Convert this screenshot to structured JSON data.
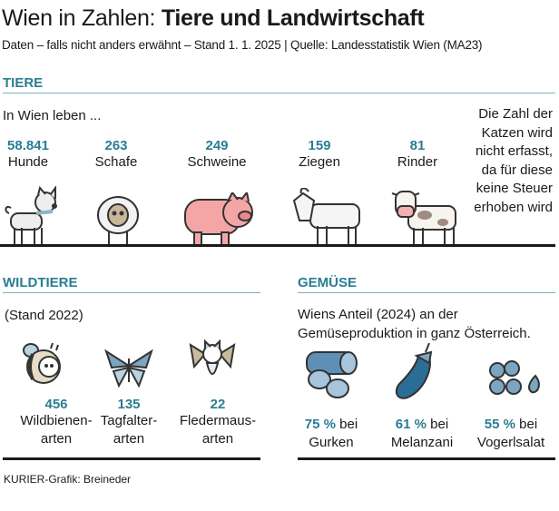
{
  "title": {
    "prefix": "Wien in Zahlen:",
    "bold": "Tiere und Landwirtschaft"
  },
  "subtitle": "Daten – falls nicht anders erwähnt – Stand 1. 1. 2025 | Quelle: Landesstatistik Wien (MA23)",
  "accent_color": "#2a7d93",
  "tiere": {
    "heading": "TIERE",
    "intro": "In Wien leben ...",
    "items": [
      {
        "value": "58.841",
        "label": "Hunde",
        "icon": "dog-icon"
      },
      {
        "value": "263",
        "label": "Schafe",
        "icon": "sheep-icon"
      },
      {
        "value": "249",
        "label": "Schweine",
        "icon": "pig-icon"
      },
      {
        "value": "159",
        "label": "Ziegen",
        "icon": "goat-icon"
      },
      {
        "value": "81",
        "label": "Rinder",
        "icon": "cow-icon"
      }
    ],
    "note": "Die Zahl der Katzen wird nicht erfasst, da für diese keine Steuer erhoben wird"
  },
  "wildtiere": {
    "heading": "WILDTIERE",
    "intro": "(Stand 2022)",
    "items": [
      {
        "value": "456",
        "label1": "Wildbienen-",
        "label2": "arten",
        "icon": "bee-icon"
      },
      {
        "value": "135",
        "label1": "Tagfalter-",
        "label2": "arten",
        "icon": "butterfly-icon"
      },
      {
        "value": "22",
        "label1": "Fledermaus-",
        "label2": "arten",
        "icon": "bat-icon"
      }
    ]
  },
  "gemuese": {
    "heading": "GEMÜSE",
    "intro1": "Wiens Anteil (2024) an der",
    "intro2": "Gemüseproduktion in ganz Österreich.",
    "items": [
      {
        "value": "75 %",
        "suffix": " bei",
        "label": "Gurken",
        "icon": "cucumber-icon"
      },
      {
        "value": "61 %",
        "suffix": " bei",
        "label": "Melanzani",
        "icon": "eggplant-icon"
      },
      {
        "value": "55 %",
        "suffix": " bei",
        "label": "Vogerlsalat",
        "icon": "lambs-lettuce-icon"
      }
    ]
  },
  "credit": "KURIER-Grafik: Breineder"
}
